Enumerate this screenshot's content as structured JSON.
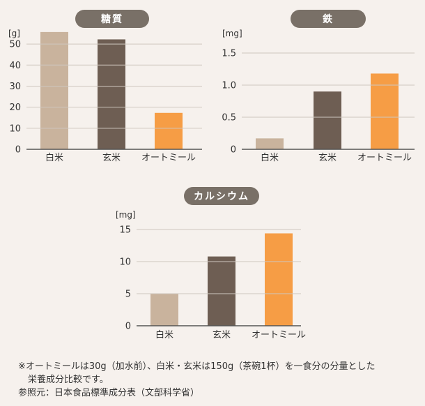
{
  "chart_data": [
    {
      "type": "bar",
      "title": "糖質",
      "unit_label": "[g]",
      "categories": [
        "白米",
        "玄米",
        "オートミール"
      ],
      "values": [
        55.7,
        52.2,
        17.3
      ],
      "ylim": [
        0,
        55
      ],
      "yticks": [
        0,
        10,
        20,
        30,
        40,
        50
      ],
      "ytick_labels": [
        "0",
        "10",
        "20",
        "30",
        "40",
        "50"
      ],
      "colors": [
        "#c9b39d",
        "#6e5e53",
        "#f69d45"
      ],
      "grid": true
    },
    {
      "type": "bar",
      "title": "鉄",
      "unit_label": "[mg]",
      "categories": [
        "白米",
        "玄米",
        "オートミール"
      ],
      "values": [
        0.17,
        0.9,
        1.18
      ],
      "ylim": [
        0,
        1.5
      ],
      "yticks": [
        0,
        0.5,
        1.0,
        1.5
      ],
      "ytick_labels": [
        "0",
        "0.5",
        "1.0",
        "1.5"
      ],
      "colors": [
        "#c9b39d",
        "#6e5e53",
        "#f69d45"
      ],
      "grid": true
    },
    {
      "type": "bar",
      "title": "カルシウム",
      "unit_label": "[mg]",
      "categories": [
        "白米",
        "玄米",
        "オートミール"
      ],
      "values": [
        5,
        10.8,
        14.4
      ],
      "ylim": [
        0,
        15
      ],
      "yticks": [
        0,
        5,
        10,
        15
      ],
      "ytick_labels": [
        "0",
        "5",
        "10",
        "15"
      ],
      "colors": [
        "#c9b39d",
        "#6e5e53",
        "#f69d45"
      ],
      "grid": true
    }
  ],
  "notes": {
    "line1": "※オートミールは30g（加水前）、白米・玄米は150g（茶碗1杯）を一食分の分量とした",
    "line2": "栄養成分比較です。",
    "line3": "参照元：日本食品標準成分表（文部科学省）"
  }
}
